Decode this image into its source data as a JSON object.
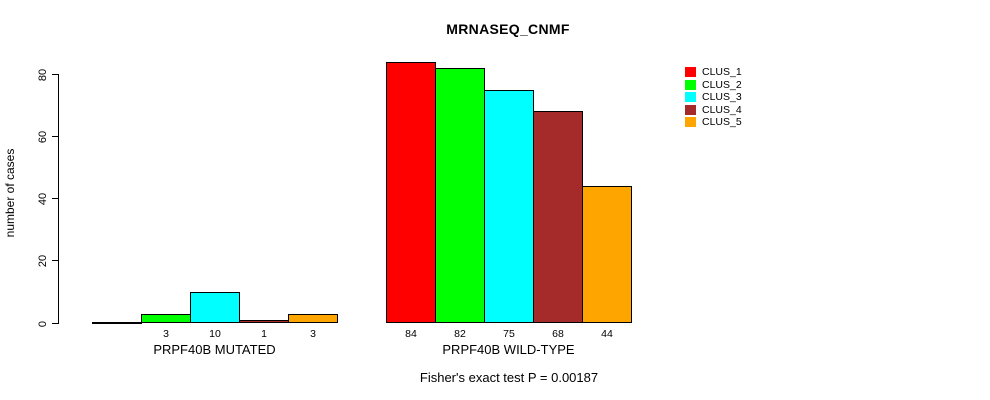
{
  "title": "MRNASEQ_CNMF",
  "footer": "Fisher's exact test P = 0.00187",
  "chart_data": {
    "type": "bar",
    "title": "MRNASEQ_CNMF",
    "xlabel": "",
    "ylabel": "number of cases",
    "ylim": [
      0,
      87
    ],
    "yticks": [
      0,
      20,
      40,
      60,
      80
    ],
    "grid": false,
    "legend_position": "right-outside",
    "categories": [
      "PRPF40B MUTATED",
      "PRPF40B WILD-TYPE"
    ],
    "series": [
      {
        "name": "CLUS_1",
        "color": "#FF0000",
        "values": [
          0,
          84
        ]
      },
      {
        "name": "CLUS_2",
        "color": "#00FF00",
        "values": [
          3,
          82
        ]
      },
      {
        "name": "CLUS_3",
        "color": "#00FFFF",
        "values": [
          10,
          75
        ]
      },
      {
        "name": "CLUS_4",
        "color": "#A52A2A",
        "values": [
          1,
          68
        ]
      },
      {
        "name": "CLUS_5",
        "color": "#FFA500",
        "values": [
          3,
          44
        ]
      }
    ],
    "groups": [
      {
        "label": "PRPF40B MUTATED",
        "values": [
          0,
          3,
          10,
          1,
          3
        ],
        "bar_labels": [
          "",
          "3",
          "10",
          "1",
          "3"
        ]
      },
      {
        "label": "PRPF40B WILD-TYPE",
        "values": [
          84,
          82,
          75,
          68,
          44
        ],
        "bar_labels": [
          "84",
          "82",
          "75",
          "68",
          "44"
        ]
      }
    ],
    "annotation": "Fisher's exact test P = 0.00187"
  }
}
